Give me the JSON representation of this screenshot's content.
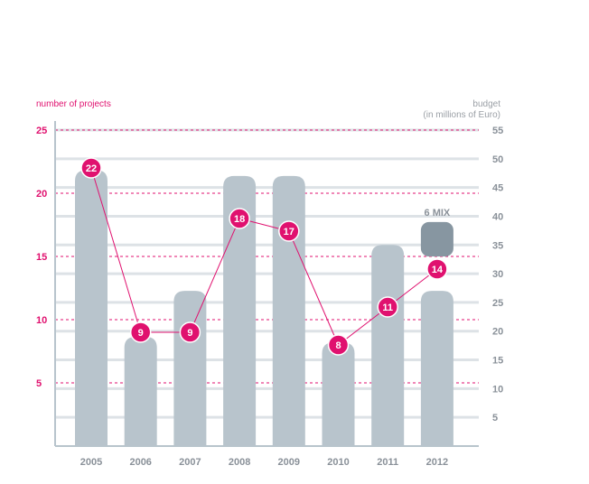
{
  "chart_data": {
    "type": "bar+line",
    "categories": [
      "2005",
      "2006",
      "2007",
      "2008",
      "2009",
      "2010",
      "2011",
      "2012"
    ],
    "left_axis": {
      "label": "number of projects",
      "ticks": [
        "5",
        "10",
        "15",
        "20",
        "25"
      ],
      "range": [
        0,
        25
      ]
    },
    "right_axis": {
      "label_line1": "budget",
      "label_line2": "(in millions of Euro)",
      "ticks": [
        "5",
        "10",
        "15",
        "20",
        "25",
        "30",
        "35",
        "40",
        "45",
        "50",
        "55"
      ],
      "range": [
        0,
        55
      ]
    },
    "series": [
      {
        "type": "bar",
        "axis": "right",
        "values": [
          48,
          19,
          27,
          47,
          47,
          18,
          35,
          27
        ]
      },
      {
        "type": "line",
        "axis": "left",
        "values": [
          22,
          9,
          9,
          18,
          17,
          8,
          11,
          14
        ],
        "labels": [
          "22",
          "9",
          "9",
          "18",
          "17",
          "8",
          "11",
          "14"
        ]
      }
    ],
    "annotation": {
      "text": "6 MIX",
      "category": "2012",
      "from": 33,
      "to": 39
    },
    "colors": {
      "bar": "#b8c4cc",
      "annotation_block": "#8796a1",
      "line": "#e0116f",
      "grid_right": "#dde2e6",
      "grid_left": "#e0116f",
      "axis": "#b8c4cc",
      "category_text": "#8a9199",
      "left_label": "#e0116f",
      "right_label": "#9a9fa5",
      "left_tick": "#e0116f",
      "right_tick": "#8a9199"
    },
    "grid": true
  }
}
